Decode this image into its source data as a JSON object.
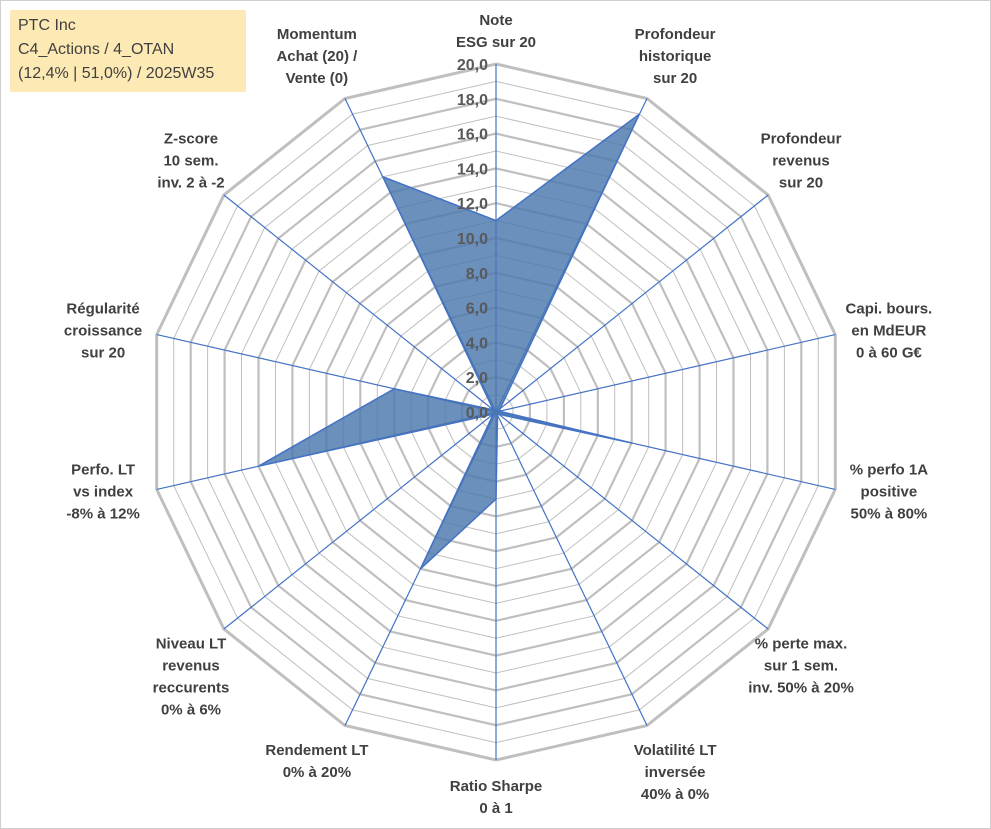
{
  "info_box": {
    "line1": "PTC Inc",
    "line2": "C4_Actions / 4_OTAN",
    "line3": "(12,4% | 51,0%) / 2025W35"
  },
  "colors": {
    "grid": "#bfbfbf",
    "spokes": "#4472c4",
    "fill": "#4a78ad",
    "info_bg": "#fde9b3"
  },
  "chart_data": {
    "type": "radar",
    "title": "",
    "rlim": [
      0,
      20
    ],
    "grid": true,
    "tick_labels": [
      "0,0",
      "2,0",
      "4,0",
      "6,0",
      "8,0",
      "10,0",
      "12,0",
      "14,0",
      "16,0",
      "18,0",
      "20,0"
    ],
    "axes": [
      [
        "Note",
        "ESG sur 20"
      ],
      [
        "Profondeur",
        "historique",
        "sur 20"
      ],
      [
        "Profondeur",
        "revenus",
        "sur 20"
      ],
      [
        "Capi. bours.",
        "en MdEUR",
        "0 à 60 G€"
      ],
      [
        "% perfo 1A",
        "positive",
        "50% à 80%"
      ],
      [
        "% perte max.",
        "sur 1 sem.",
        "inv. 50% à 20%"
      ],
      [
        "Volatilité LT",
        "inversée",
        "40% à 0%"
      ],
      [
        "Ratio Sharpe",
        "0 à 1"
      ],
      [
        "Rendement LT",
        "0% à 20%"
      ],
      [
        "Niveau LT",
        "revenus",
        "reccurents",
        "0% à 6%"
      ],
      [
        "Perfo. LT",
        "vs index",
        "-8% à 12%"
      ],
      [
        "Régularité",
        "croissance",
        "sur 20"
      ],
      [
        "Z-score",
        "10 sem.",
        "inv. 2 à -2"
      ],
      [
        "Momentum",
        "Achat (20) /",
        "Vente (0)"
      ]
    ],
    "series": [
      {
        "values": [
          11.0,
          19.0,
          0.3,
          0.2,
          8.0,
          0.2,
          0.2,
          5.0,
          10.0,
          0.2,
          14.0,
          6.0,
          0.2,
          15.0
        ]
      }
    ]
  }
}
